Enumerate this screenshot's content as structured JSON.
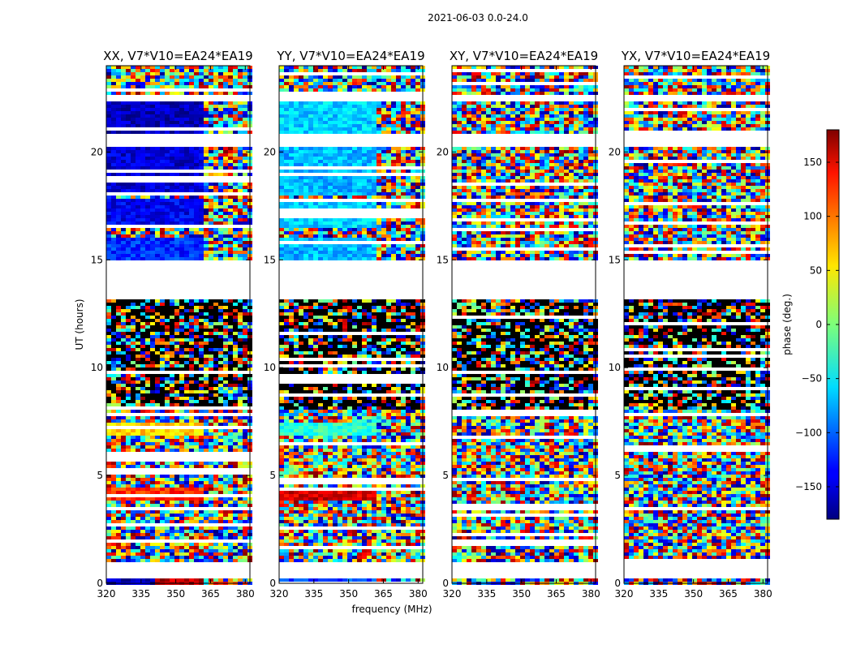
{
  "figure": {
    "suptitle": "2021-06-03 0.0-24.0",
    "xlabel": "frequency (MHz)",
    "ylabel": "UT (hours)",
    "colorbar_label": "phase (deg.)",
    "colorbar_ticks": [
      -150,
      -100,
      -50,
      0,
      50,
      100,
      150
    ],
    "colorbar_tick_labels": [
      "−150",
      "−100",
      "−50",
      "0",
      "50",
      "100",
      "150"
    ],
    "colormap": "jet",
    "colorbar_range": [
      -180,
      180
    ]
  },
  "chart_data": [
    {
      "type": "heatmap",
      "title": "XX, V7*V10=EA24*EA19",
      "xlabel": "frequency (MHz)",
      "ylabel": "UT (hours)",
      "xlim": [
        320,
        382
      ],
      "ylim": [
        0,
        24
      ],
      "xticks": [
        320,
        335,
        350,
        365,
        380
      ],
      "yticks": [
        0,
        5,
        10,
        15,
        20
      ],
      "coherent_phase_blocks": [
        {
          "ut": [
            0.0,
            0.3
          ],
          "freq": [
            320,
            342
          ],
          "phase": -160
        },
        {
          "ut": [
            0.0,
            0.3
          ],
          "freq": [
            342,
            362
          ],
          "phase": 160
        },
        {
          "ut": [
            3.8,
            4.5
          ],
          "freq": [
            320,
            362
          ],
          "phase": 120
        },
        {
          "ut": [
            6.8,
            7.4
          ],
          "freq": [
            320,
            362
          ],
          "phase": 60
        },
        {
          "ut": [
            15.0,
            16.0
          ],
          "freq": [
            320,
            362
          ],
          "phase": -120
        },
        {
          "ut": [
            16.5,
            17.8
          ],
          "freq": [
            320,
            362
          ],
          "phase": -140
        },
        {
          "ut": [
            18.0,
            20.3
          ],
          "freq": [
            320,
            362
          ],
          "phase": -150
        },
        {
          "ut": [
            20.9,
            22.3
          ],
          "freq": [
            320,
            362
          ],
          "phase": -160
        }
      ],
      "flagged_ut_gaps": [
        [
          0.3,
          1.0
        ],
        [
          13.1,
          14.9
        ],
        [
          20.3,
          20.9
        ],
        [
          22.3,
          22.7
        ]
      ]
    },
    {
      "type": "heatmap",
      "title": "YY, V7*V10=EA24*EA19",
      "xlabel": "frequency (MHz)",
      "ylabel": "UT (hours)",
      "xlim": [
        320,
        382
      ],
      "ylim": [
        0,
        24
      ],
      "xticks": [
        320,
        335,
        350,
        365,
        380
      ],
      "yticks": [
        0,
        5,
        10,
        15,
        20
      ],
      "coherent_phase_blocks": [
        {
          "ut": [
            0.0,
            0.3
          ],
          "freq": [
            320,
            362
          ],
          "phase": -110
        },
        {
          "ut": [
            3.8,
            4.5
          ],
          "freq": [
            320,
            362
          ],
          "phase": 150
        },
        {
          "ut": [
            6.8,
            7.4
          ],
          "freq": [
            320,
            362
          ],
          "phase": -30
        },
        {
          "ut": [
            15.0,
            16.0
          ],
          "freq": [
            320,
            362
          ],
          "phase": -70
        },
        {
          "ut": [
            16.5,
            17.8
          ],
          "freq": [
            320,
            362
          ],
          "phase": -60
        },
        {
          "ut": [
            18.0,
            20.3
          ],
          "freq": [
            320,
            362
          ],
          "phase": -70
        },
        {
          "ut": [
            20.9,
            22.3
          ],
          "freq": [
            320,
            362
          ],
          "phase": -60
        }
      ],
      "flagged_ut_gaps": [
        [
          0.3,
          1.0
        ],
        [
          13.1,
          14.9
        ],
        [
          20.3,
          20.9
        ],
        [
          22.3,
          22.7
        ]
      ]
    },
    {
      "type": "heatmap",
      "title": "XY, V7*V10=EA24*EA19",
      "xlabel": "frequency (MHz)",
      "ylabel": "UT (hours)",
      "xlim": [
        320,
        382
      ],
      "ylim": [
        0,
        24
      ],
      "xticks": [
        320,
        335,
        350,
        365,
        380
      ],
      "yticks": [
        0,
        5,
        10,
        15,
        20
      ],
      "coherent_phase_blocks": [],
      "flagged_ut_gaps": [
        [
          0.3,
          1.0
        ],
        [
          13.1,
          14.9
        ],
        [
          20.3,
          20.9
        ],
        [
          22.3,
          22.7
        ]
      ]
    },
    {
      "type": "heatmap",
      "title": "YX, V7*V10=EA24*EA19",
      "xlabel": "frequency (MHz)",
      "ylabel": "UT (hours)",
      "xlim": [
        320,
        382
      ],
      "ylim": [
        0,
        24
      ],
      "xticks": [
        320,
        335,
        350,
        365,
        380
      ],
      "yticks": [
        0,
        5,
        10,
        15,
        20
      ],
      "coherent_phase_blocks": [],
      "flagged_ut_gaps": [
        [
          0.3,
          1.0
        ],
        [
          13.1,
          14.9
        ],
        [
          20.3,
          20.9
        ],
        [
          22.3,
          22.7
        ]
      ]
    }
  ]
}
